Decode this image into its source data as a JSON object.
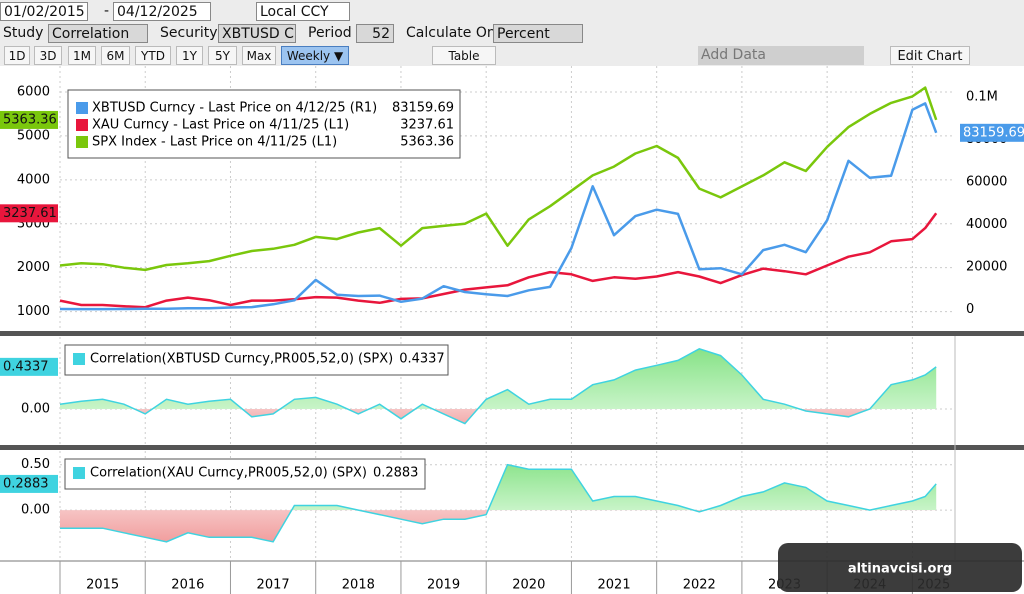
{
  "toolbar": {
    "start_date": "01/02/2015",
    "separator": "-",
    "end_date": "04/12/2025",
    "currency": "Local CCY",
    "study_label": "Study",
    "study": "Correlation",
    "security_label": "Security",
    "security": "XBTUSD Cu",
    "period_label": "Period",
    "period": "52",
    "calc_label": "Calculate On",
    "calc": "Percent",
    "ranges": [
      "1D",
      "3D",
      "1M",
      "6M",
      "YTD",
      "1Y",
      "5Y",
      "Max"
    ],
    "frequency": "Weekly ▼",
    "table": "Table",
    "add_data": "Add Data",
    "edit_chart": "Edit Chart"
  },
  "watermark": "altinavcisi.org",
  "chart_data": [
    {
      "type": "line",
      "grid": true,
      "x": [
        2015,
        2015.25,
        2015.5,
        2015.75,
        2016,
        2016.25,
        2016.5,
        2016.75,
        2017,
        2017.25,
        2017.5,
        2017.75,
        2018,
        2018.25,
        2018.5,
        2018.75,
        2019,
        2019.25,
        2019.5,
        2019.75,
        2020,
        2020.25,
        2020.5,
        2020.75,
        2021,
        2021.25,
        2021.5,
        2021.75,
        2022,
        2022.25,
        2022.5,
        2022.75,
        2023,
        2023.25,
        2023.5,
        2023.75,
        2024,
        2024.25,
        2024.5,
        2024.75,
        2025,
        2025.15,
        2025.28
      ],
      "xlim": [
        2015,
        2025.5
      ],
      "xticks": [
        2015,
        2016,
        2017,
        2018,
        2019,
        2020,
        2021,
        2022,
        2023,
        2024,
        2025
      ],
      "ylim": [
        900,
        6500
      ],
      "yticks": [
        1000,
        2000,
        3000,
        4000,
        5000,
        6000
      ],
      "y2lim": [
        -3000,
        112700
      ],
      "y2ticks": [
        0,
        20000,
        40000,
        60000,
        80000,
        {
          "value": 100000,
          "label": "0.1M"
        }
      ],
      "series": [
        {
          "name": "XBTUSD Curncy - Last Price on 4/12/25 (R1)",
          "color": "#4a9bea",
          "axis": "y2",
          "last": 83159.69,
          "values": [
            300,
            250,
            250,
            300,
            430,
            420,
            650,
            610,
            1000,
            1200,
            2500,
            4400,
            14000,
            7000,
            6400,
            6600,
            3700,
            5200,
            11000,
            8300,
            7200,
            6400,
            9100,
            10700,
            29000,
            58000,
            35000,
            44000,
            47000,
            45000,
            19000,
            19500,
            16600,
            28000,
            30500,
            27000,
            42000,
            70000,
            62000,
            63000,
            94000,
            97000,
            83159.69
          ]
        },
        {
          "name": "XAU Curncy - Last Price on 4/11/25 (L1)",
          "color": "#e8163c",
          "axis": "y",
          "last": 3237.61,
          "values": [
            1250,
            1150,
            1150,
            1120,
            1100,
            1250,
            1320,
            1260,
            1150,
            1250,
            1250,
            1280,
            1330,
            1320,
            1250,
            1200,
            1290,
            1300,
            1400,
            1500,
            1550,
            1600,
            1780,
            1900,
            1850,
            1700,
            1780,
            1750,
            1800,
            1900,
            1800,
            1650,
            1830,
            1980,
            1920,
            1850,
            2050,
            2250,
            2350,
            2600,
            2650,
            2900,
            3237.61
          ]
        },
        {
          "name": "SPX Index - Last Price on 4/11/25 (L1)",
          "color": "#7ac70c",
          "axis": "y",
          "last": 5363.36,
          "values": [
            2050,
            2100,
            2080,
            2000,
            1950,
            2060,
            2100,
            2150,
            2270,
            2380,
            2430,
            2520,
            2700,
            2650,
            2800,
            2900,
            2500,
            2900,
            2950,
            3000,
            3230,
            2500,
            3100,
            3400,
            3750,
            4100,
            4300,
            4600,
            4770,
            4500,
            3800,
            3600,
            3850,
            4100,
            4400,
            4200,
            4750,
            5200,
            5500,
            5750,
            5900,
            6100,
            5363.36
          ]
        }
      ]
    },
    {
      "type": "area",
      "grid": true,
      "name": "Correlation(XBTUSD Curncy,PR005,52,0) (SPX)",
      "color": "#3fd3e0",
      "last": 0.4337,
      "x": [
        2015,
        2015.25,
        2015.5,
        2015.75,
        2016,
        2016.25,
        2016.5,
        2016.75,
        2017,
        2017.25,
        2017.5,
        2017.75,
        2018,
        2018.25,
        2018.5,
        2018.75,
        2019,
        2019.25,
        2019.5,
        2019.75,
        2020,
        2020.25,
        2020.5,
        2020.75,
        2021,
        2021.25,
        2021.5,
        2021.75,
        2022,
        2022.25,
        2022.5,
        2022.75,
        2023,
        2023.25,
        2023.5,
        2023.75,
        2024,
        2024.25,
        2024.5,
        2024.75,
        2025,
        2025.15,
        2025.28
      ],
      "xlim": [
        2015,
        2025.5
      ],
      "xticks": [
        2015,
        2016,
        2017,
        2018,
        2019,
        2020,
        2021,
        2022,
        2023,
        2024,
        2025
      ],
      "ylim": [
        -0.37,
        0.71
      ],
      "yticks": [
        {
          "value": 0,
          "label": "0.00"
        }
      ],
      "values": [
        0.05,
        0.08,
        0.1,
        0.05,
        -0.05,
        0.1,
        0.05,
        0.08,
        0.1,
        -0.08,
        -0.05,
        0.1,
        0.12,
        0.05,
        -0.05,
        0.05,
        -0.1,
        0.05,
        -0.05,
        -0.15,
        0.1,
        0.2,
        0.05,
        0.1,
        0.1,
        0.25,
        0.3,
        0.4,
        0.45,
        0.5,
        0.62,
        0.55,
        0.35,
        0.1,
        0.05,
        -0.02,
        -0.05,
        -0.08,
        0,
        0.25,
        0.3,
        0.35,
        0.4337
      ]
    },
    {
      "type": "area",
      "grid": true,
      "name": "Correlation(XAU Curncy,PR005,52,0) (SPX)",
      "color": "#3fd3e0",
      "last": 0.2883,
      "x": [
        2015,
        2015.25,
        2015.5,
        2015.75,
        2016,
        2016.25,
        2016.5,
        2016.75,
        2017,
        2017.25,
        2017.5,
        2017.75,
        2018,
        2018.25,
        2018.5,
        2018.75,
        2019,
        2019.25,
        2019.5,
        2019.75,
        2020,
        2020.25,
        2020.5,
        2020.75,
        2021,
        2021.25,
        2021.5,
        2021.75,
        2022,
        2022.25,
        2022.5,
        2022.75,
        2023,
        2023.25,
        2023.5,
        2023.75,
        2024,
        2024.25,
        2024.5,
        2024.75,
        2025,
        2025.15,
        2025.28
      ],
      "xlim": [
        2015,
        2025.5
      ],
      "xticks": [
        2015,
        2016,
        2017,
        2018,
        2019,
        2020,
        2021,
        2022,
        2023,
        2024,
        2025
      ],
      "ylim": [
        -0.55,
        0.64
      ],
      "yticks": [
        {
          "value": 0,
          "label": "0.00"
        },
        {
          "value": 0.5,
          "label": "0.50"
        }
      ],
      "values": [
        -0.2,
        -0.2,
        -0.2,
        -0.25,
        -0.3,
        -0.35,
        -0.25,
        -0.3,
        -0.3,
        -0.3,
        -0.35,
        0.05,
        0.05,
        0.05,
        0,
        -0.05,
        -0.1,
        -0.15,
        -0.1,
        -0.1,
        -0.05,
        0.5,
        0.45,
        0.45,
        0.45,
        0.1,
        0.15,
        0.15,
        0.1,
        0.05,
        -0.02,
        0.05,
        0.15,
        0.2,
        0.3,
        0.25,
        0.1,
        0.05,
        0,
        0.05,
        0.1,
        0.15,
        0.2883
      ]
    }
  ]
}
